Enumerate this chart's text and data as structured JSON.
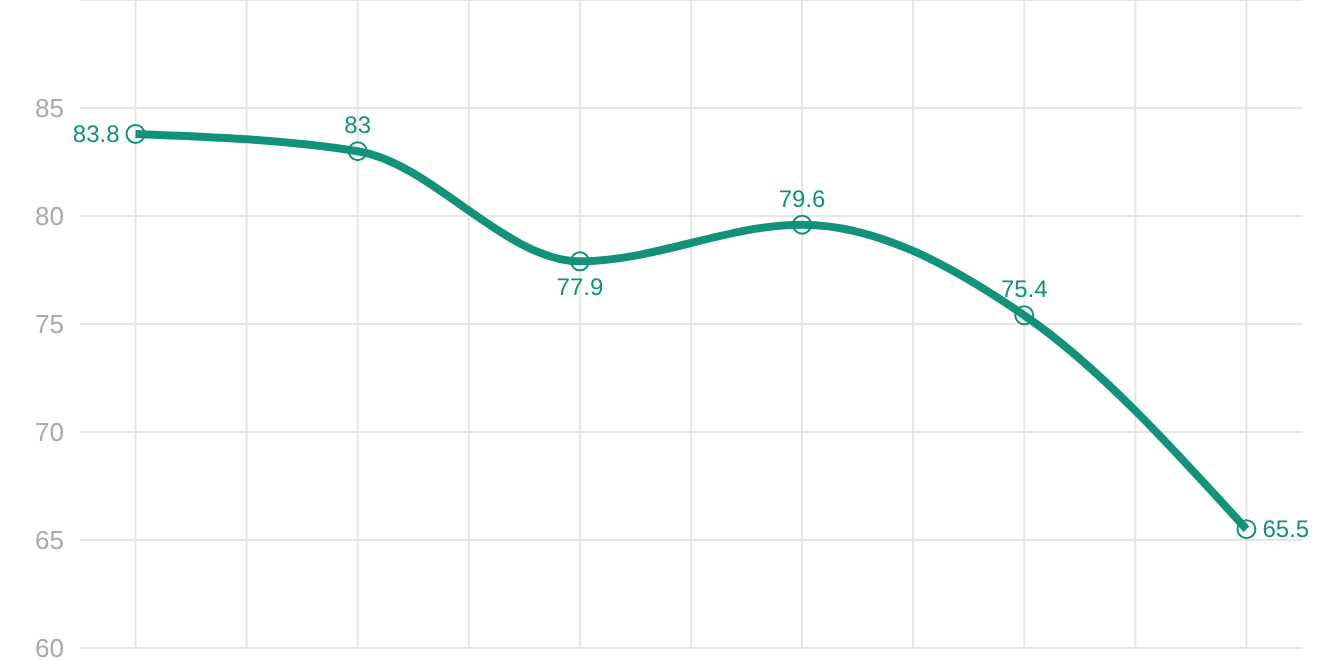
{
  "chart_data": {
    "type": "line",
    "categories": [
      null,
      null,
      null,
      null,
      null,
      null
    ],
    "series": [
      {
        "color": "#13927a",
        "values": [
          83.8,
          83,
          77.9,
          79.6,
          75.4,
          65.5
        ]
      }
    ],
    "ylim": [
      60,
      90
    ],
    "yticks": [
      60,
      65,
      70,
      75,
      80,
      85,
      {
        "value": 90,
        "label": null
      }
    ],
    "grid": true,
    "tick_labels": "y",
    "marker": "circle",
    "line_style": "solid",
    "data_labels": true
  }
}
